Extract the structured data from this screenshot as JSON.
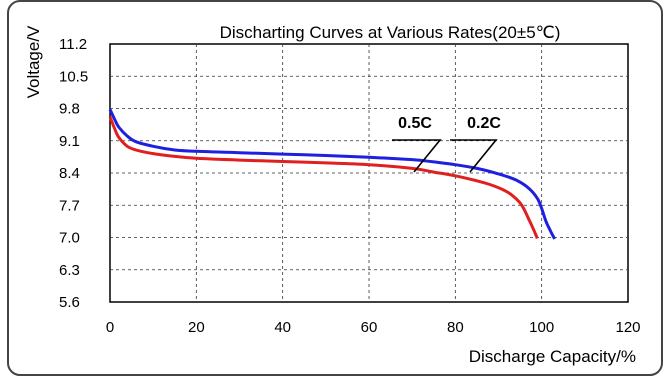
{
  "chart_data": {
    "type": "line",
    "title": "Discharting Curves at Various Rates(20±5℃)",
    "xlabel": "Discharge Capacity/%",
    "ylabel": "Voltage/V",
    "xlim": [
      0,
      120
    ],
    "ylim": [
      5.6,
      11.2
    ],
    "x_ticks": [
      "0",
      "20",
      "40",
      "60",
      "80",
      "100",
      "120"
    ],
    "y_ticks": [
      "11.2",
      "10.5",
      "9.8",
      "9.1",
      "8.4",
      "7.7",
      "7.0",
      "6.3",
      "5.6"
    ],
    "grid": true,
    "legend": "none",
    "colors": {
      "0.2C": "#1f1fe0",
      "0.5C": "#e01f1f"
    },
    "annotations": [
      "0.5C",
      "0.2C"
    ],
    "series": [
      {
        "name": "0.2C",
        "x": [
          0,
          1,
          2,
          4,
          6,
          10,
          15,
          20,
          30,
          40,
          50,
          60,
          70,
          75,
          80,
          85,
          90,
          94,
          97,
          99,
          100,
          101,
          102,
          103
        ],
        "y": [
          9.78,
          9.58,
          9.4,
          9.2,
          9.08,
          8.98,
          8.9,
          8.87,
          8.84,
          8.81,
          8.78,
          8.74,
          8.69,
          8.64,
          8.58,
          8.5,
          8.38,
          8.25,
          8.07,
          7.85,
          7.63,
          7.35,
          7.15,
          6.97
        ]
      },
      {
        "name": "0.5C",
        "x": [
          0,
          1,
          2,
          4,
          6,
          10,
          15,
          20,
          30,
          40,
          50,
          60,
          70,
          75,
          80,
          85,
          88,
          91,
          93,
          95,
          96,
          97,
          98,
          99
        ],
        "y": [
          9.62,
          9.38,
          9.18,
          8.98,
          8.9,
          8.82,
          8.76,
          8.72,
          8.68,
          8.65,
          8.62,
          8.58,
          8.5,
          8.42,
          8.34,
          8.23,
          8.15,
          8.04,
          7.93,
          7.75,
          7.6,
          7.4,
          7.2,
          6.98
        ]
      }
    ]
  }
}
